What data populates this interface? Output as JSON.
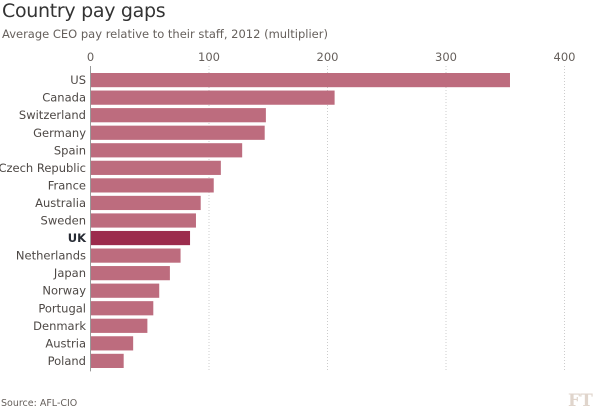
{
  "header": {
    "title": "Country pay gaps",
    "subtitle": "Average CEO pay relative to their staff, 2012 (multiplier)"
  },
  "footer": {
    "source": "Source: AFL-CIO",
    "logo": "FT"
  },
  "colors": {
    "bar": "#bd6c7e",
    "highlight": "#9c2c4d",
    "grid": "#cccccc",
    "axis": "#999999",
    "text": "#4d4845"
  },
  "chart_data": {
    "type": "bar",
    "orientation": "horizontal",
    "title": "Country pay gaps",
    "subtitle": "Average CEO pay relative to their staff, 2012 (multiplier)",
    "xlabel": "",
    "ylabel": "",
    "xlim": [
      0,
      400
    ],
    "xticks": [
      0,
      100,
      200,
      300,
      400
    ],
    "grid": true,
    "categories": [
      "US",
      "Canada",
      "Switzerland",
      "Germany",
      "Spain",
      "Czech Republic",
      "France",
      "Australia",
      "Sweden",
      "UK",
      "Netherlands",
      "Japan",
      "Norway",
      "Portugal",
      "Denmark",
      "Austria",
      "Poland"
    ],
    "values": [
      354,
      206,
      148,
      147,
      128,
      110,
      104,
      93,
      89,
      84,
      76,
      67,
      58,
      53,
      48,
      36,
      28
    ],
    "highlight": "UK",
    "source": "AFL-CIO"
  }
}
